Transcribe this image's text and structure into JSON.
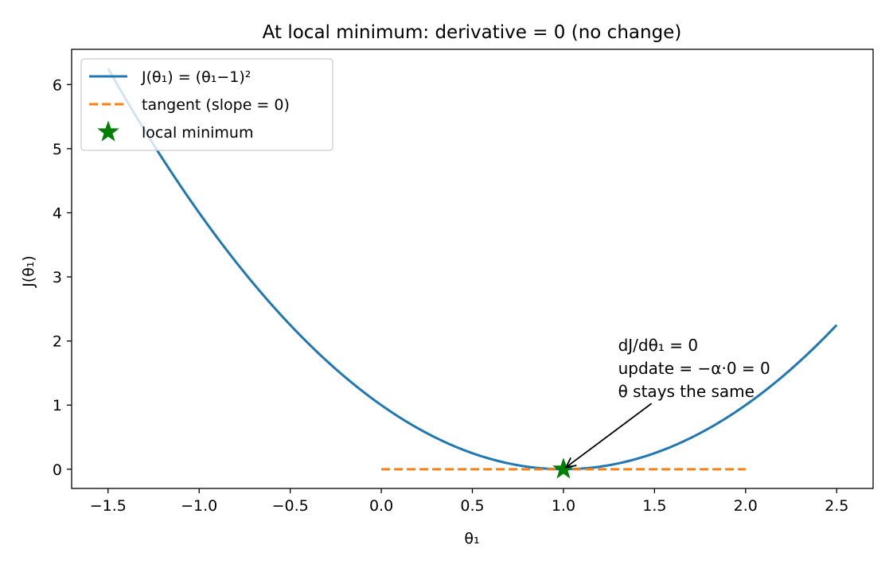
{
  "chart_data": {
    "type": "line",
    "title": "At local minimum: derivative = 0 (no change)",
    "xlabel": "θ₁",
    "ylabel": "J(θ₁)",
    "xlim": [
      -1.7,
      2.7
    ],
    "ylim": [
      -0.3,
      6.55
    ],
    "x_ticks": [
      -1.5,
      -1.0,
      -0.5,
      0.0,
      0.5,
      1.0,
      1.5,
      2.0,
      2.5
    ],
    "x_tick_labels": [
      "−1.5",
      "−1.0",
      "−0.5",
      "0.0",
      "0.5",
      "1.0",
      "1.5",
      "2.0",
      "2.5"
    ],
    "y_ticks": [
      0,
      1,
      2,
      3,
      4,
      5,
      6
    ],
    "y_tick_labels": [
      "0",
      "1",
      "2",
      "3",
      "4",
      "5",
      "6"
    ],
    "grid": false,
    "legend_position": "top-left",
    "series": [
      {
        "name": "J(θ₁) = (θ₁−1)²",
        "kind": "line",
        "style": "solid",
        "color": "#1f77b4",
        "function": "(x-1)^2",
        "x_range": [
          -1.5,
          2.5
        ]
      },
      {
        "name": "tangent (slope = 0)",
        "kind": "line",
        "style": "dashed",
        "color": "#ff7f0e",
        "x": [
          0.0,
          2.0
        ],
        "y": [
          0.0,
          0.0
        ]
      },
      {
        "name": "local minimum",
        "kind": "scatter",
        "marker": "star",
        "color": "#008000",
        "x": [
          1.0
        ],
        "y": [
          0.0
        ]
      }
    ],
    "annotation": {
      "lines": [
        "dJ/dθ₁ = 0",
        "update = −α·0 = 0",
        "θ stays the same"
      ],
      "point_x": 1.0,
      "point_y": 0.0,
      "text_x": 1.3,
      "text_y": 1.05
    }
  }
}
